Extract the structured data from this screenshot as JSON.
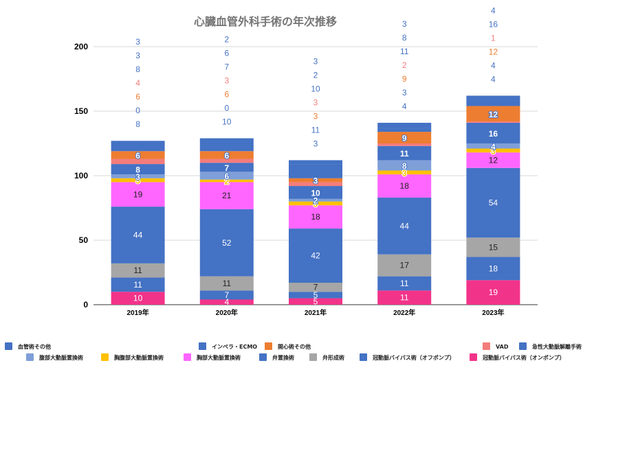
{
  "chart_data": {
    "type": "bar",
    "stacked": true,
    "title": "心臓血管外科手術の年次推移",
    "xlabel": "",
    "ylabel": "",
    "ylim": [
      0,
      200
    ],
    "yticks": [
      0,
      50,
      100,
      150,
      200
    ],
    "grid": true,
    "legend_position": "bottom",
    "categories": [
      "2019年",
      "2020年",
      "2021年",
      "2022年",
      "2023年"
    ],
    "series": [
      {
        "name": "冠動脈バイパス術（オンポンプ）",
        "color": "#f2338a",
        "values": [
          10,
          4,
          5,
          11,
          19
        ]
      },
      {
        "name": "冠動脈バイパス術（オフポンプ）",
        "color": "#4472c4",
        "values": [
          11,
          7,
          5,
          11,
          18
        ]
      },
      {
        "name": "弁形成術",
        "color": "#a6a6a6",
        "values": [
          11,
          11,
          7,
          17,
          15
        ]
      },
      {
        "name": "弁置換術",
        "color": "#4472c4",
        "values": [
          44,
          52,
          42,
          44,
          54
        ]
      },
      {
        "name": "胸部大動脈置換術",
        "color": "#ff66ff",
        "values": [
          19,
          21,
          18,
          18,
          12
        ]
      },
      {
        "name": "胸腹部大動脈置換術",
        "color": "#ffc000",
        "values": [
          3,
          2,
          3,
          3,
          3
        ]
      },
      {
        "name": "腹部大動脈置換術",
        "color": "#7f9fd9",
        "values": [
          3,
          6,
          2,
          8,
          4
        ]
      },
      {
        "name": "急性大動脈解離手術",
        "color": "#4472c4",
        "values": [
          8,
          7,
          10,
          11,
          16
        ]
      },
      {
        "name": "VAD",
        "color": "#f47c7c",
        "values": [
          4,
          3,
          3,
          2,
          1
        ]
      },
      {
        "name": "開心術その他",
        "color": "#ed7d31",
        "values": [
          6,
          6,
          3,
          9,
          12
        ]
      },
      {
        "name": "インペラ・ECMO",
        "color": "#4472c4",
        "values": [
          0,
          0,
          11,
          3,
          4
        ]
      },
      {
        "name": "血管術その他",
        "color": "#4472c4",
        "values": [
          8,
          10,
          3,
          4,
          4
        ]
      }
    ]
  }
}
